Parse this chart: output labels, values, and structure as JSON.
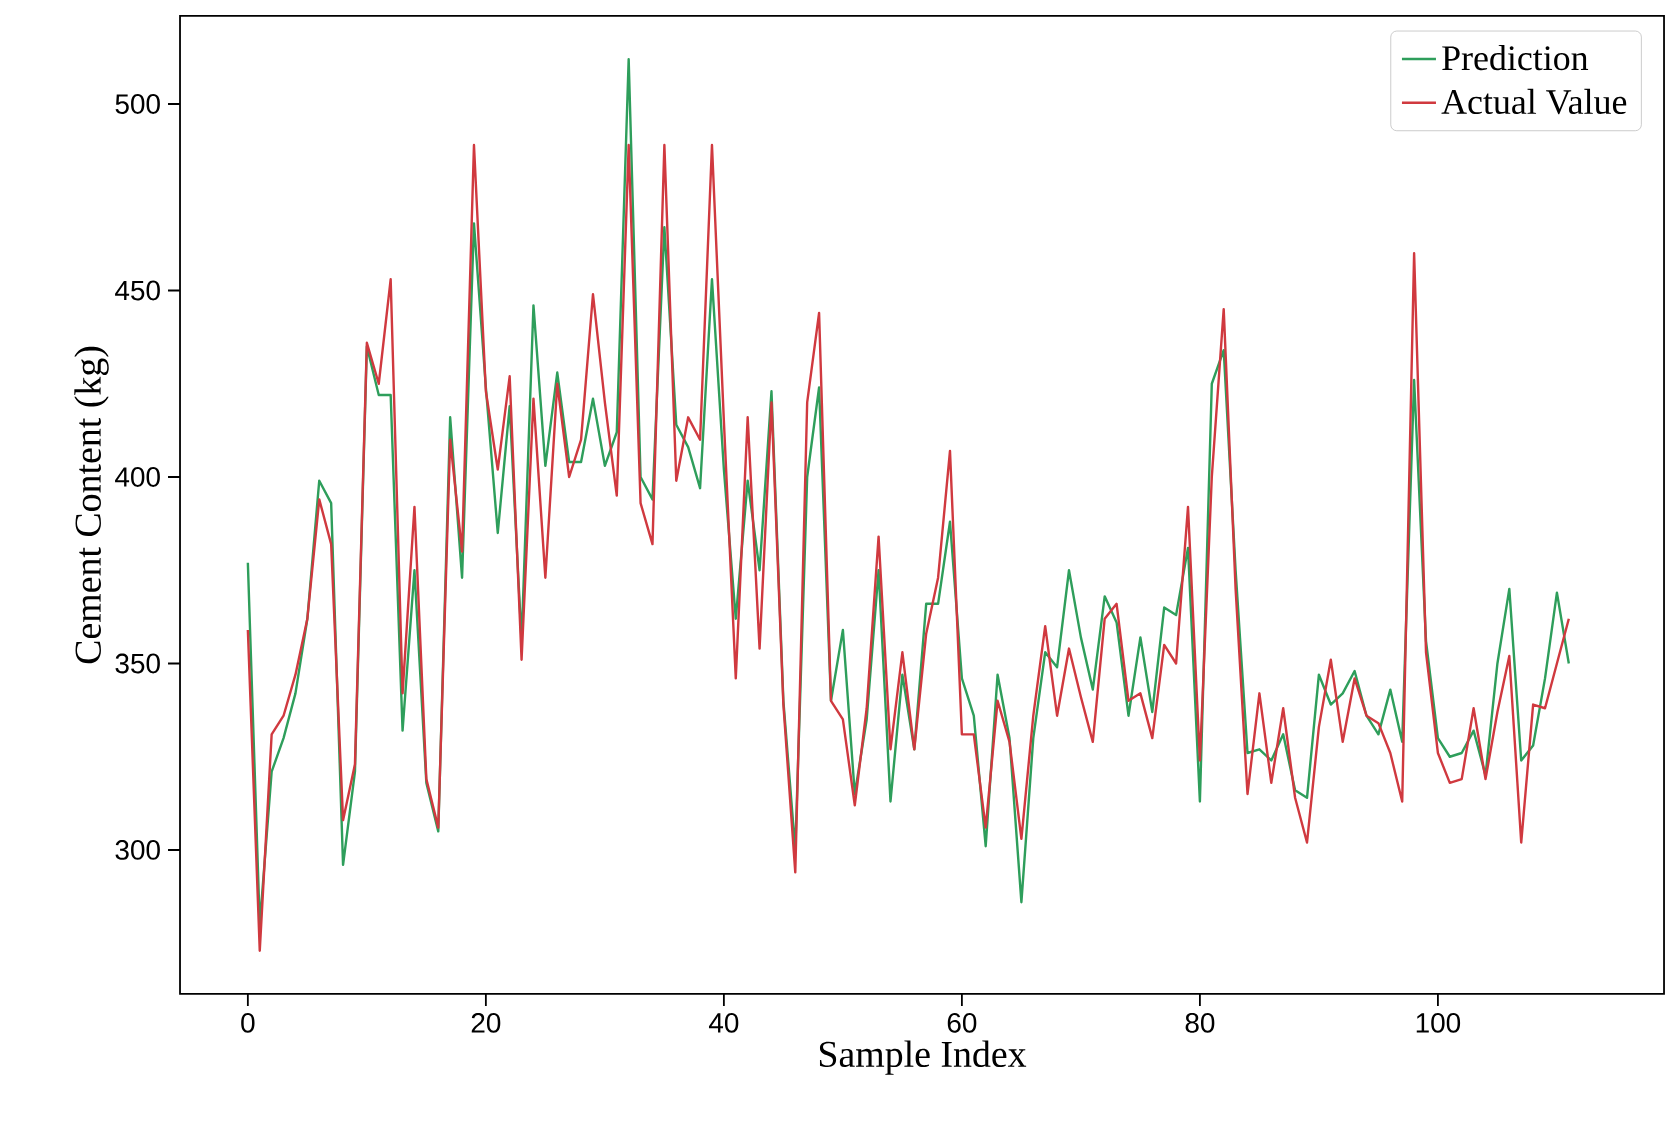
{
  "chart_data": {
    "type": "line",
    "xlabel": "Sample Index",
    "ylabel": "Cement Content (kg)",
    "x": [
      0,
      1,
      2,
      3,
      4,
      5,
      6,
      7,
      8,
      9,
      10,
      11,
      12,
      13,
      14,
      15,
      16,
      17,
      18,
      19,
      20,
      21,
      22,
      23,
      24,
      25,
      26,
      27,
      28,
      29,
      30,
      31,
      32,
      33,
      34,
      35,
      36,
      37,
      38,
      39,
      40,
      41,
      42,
      43,
      44,
      45,
      46,
      47,
      48,
      49,
      50,
      51,
      52,
      53,
      54,
      55,
      56,
      57,
      58,
      59,
      60,
      61,
      62,
      63,
      64,
      65,
      66,
      67,
      68,
      69,
      70,
      71,
      72,
      73,
      74,
      75,
      76,
      77,
      78,
      79,
      80,
      81,
      82,
      83,
      84,
      85,
      86,
      87,
      88,
      89,
      90,
      91,
      92,
      93,
      94,
      95,
      96,
      97,
      98,
      99,
      100,
      101,
      102,
      103,
      104,
      105,
      106,
      107,
      108,
      109,
      110,
      111
    ],
    "series": [
      {
        "name": "Prediction",
        "color": "#2e9e5b",
        "values": [
          377,
          280,
          321,
          330,
          342,
          362,
          399,
          393,
          296,
          321,
          435,
          422,
          422,
          332,
          375,
          318,
          305,
          416,
          373,
          468,
          424,
          385,
          419,
          356,
          446,
          403,
          428,
          404,
          404,
          421,
          403,
          412,
          512,
          400,
          394,
          467,
          414,
          408,
          397,
          453,
          402,
          362,
          399,
          375,
          423,
          340,
          300,
          400,
          424,
          340,
          359,
          315,
          335,
          375,
          313,
          347,
          327,
          366,
          366,
          388,
          346,
          336,
          301,
          347,
          330,
          286,
          330,
          353,
          349,
          375,
          357,
          343,
          368,
          361,
          336,
          357,
          337,
          365,
          363,
          381,
          313,
          425,
          434,
          375,
          326,
          327,
          324,
          331,
          316,
          314,
          347,
          339,
          342,
          348,
          336,
          331,
          343,
          329,
          426,
          356,
          330,
          325,
          326,
          332,
          320,
          350,
          370,
          324,
          328,
          346,
          369,
          350
        ]
      },
      {
        "name": "Actual Value",
        "color": "#d0393f",
        "values": [
          359,
          273,
          331,
          336,
          347,
          362,
          394,
          382,
          308,
          323,
          436,
          425,
          453,
          342,
          392,
          319,
          306,
          410,
          380,
          489,
          423,
          402,
          427,
          351,
          421,
          373,
          425,
          400,
          410,
          449,
          420,
          395,
          489,
          393,
          382,
          489,
          399,
          416,
          410,
          489,
          415,
          346,
          416,
          354,
          420,
          339,
          294,
          420,
          444,
          340,
          335,
          312,
          338,
          384,
          327,
          353,
          327,
          358,
          373,
          407,
          331,
          331,
          306,
          340,
          329,
          303,
          336,
          360,
          336,
          354,
          341,
          329,
          362,
          366,
          340,
          342,
          330,
          355,
          350,
          392,
          324,
          400,
          445,
          370,
          315,
          342,
          318,
          338,
          314,
          302,
          333,
          351,
          329,
          346,
          336,
          334,
          326,
          313,
          460,
          353,
          326,
          318,
          319,
          338,
          319,
          337,
          352,
          302,
          339,
          338,
          350,
          362
        ]
      }
    ],
    "xlim": [
      -5.7,
      119
    ],
    "ylim": [
      261.4,
      523.6
    ],
    "xticks": [
      0,
      20,
      40,
      60,
      80,
      100
    ],
    "yticks": [
      300,
      350,
      400,
      450,
      500
    ],
    "grid": false,
    "legend": "top right",
    "marker": "none",
    "line_style": "solid"
  }
}
